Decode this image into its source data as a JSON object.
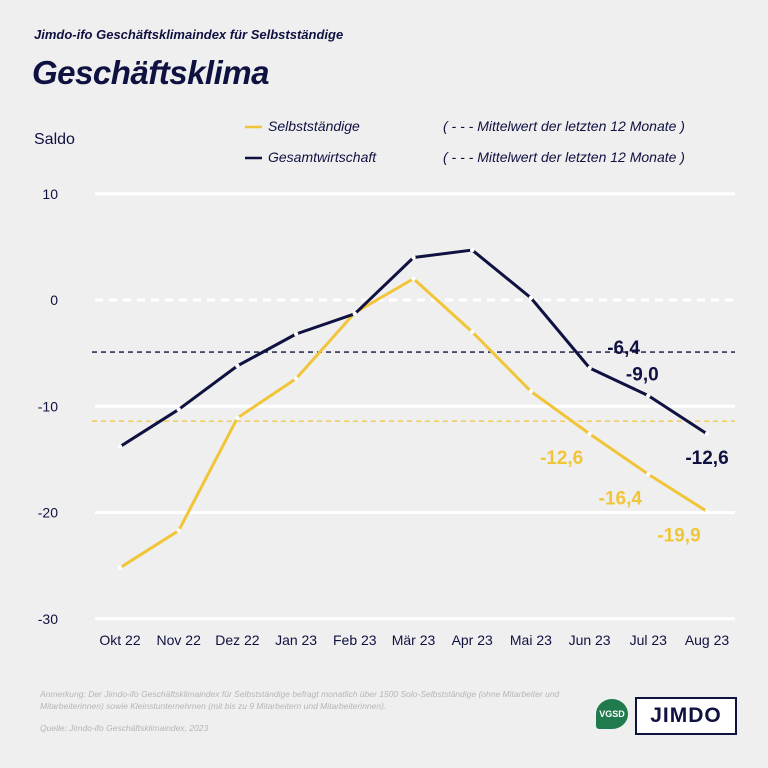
{
  "header": {
    "supertitle": "Jimdo-ifo Geschäftsklimaindex für Selbstständige",
    "title": "Geschäftsklima"
  },
  "legend": {
    "s1": "Selbstständige",
    "s2": "Gesamtwirtschaft",
    "m1": "( - - - Mittelwert der letzten 12 Monate )",
    "m2": "( - - - Mittelwert der letzten 12 Monate )"
  },
  "footer": {
    "note1": "Anmerkung: Der Jimdo-ifo Geschäftsklimaindex für Selbstständige befragt monatlich über 1500 Solo-Selbstständige (ohne Mitarbeiter",
    "note2": "und Mitarbeiterinnen) sowie Kleinstunternehmen (mit bis zu 9 Mitarbeitern und Mitarbeiterinnen).",
    "source": "Quelle: Jimdo-ifo Geschäftsklimaindex, 2023",
    "logo1": "VGSD",
    "logo2": "JIMDO"
  },
  "chart_data": {
    "type": "line",
    "ylabel": "Saldo",
    "ylim": [
      -30,
      10
    ],
    "yticks": [
      10,
      0,
      -10,
      -20,
      -30
    ],
    "categories": [
      "Okt 22",
      "Nov 22",
      "Dez 22",
      "Jan 23",
      "Feb 23",
      "Mär 23",
      "Apr 23",
      "Mai 23",
      "Jun 23",
      "Jul 23",
      "Aug 23"
    ],
    "series": [
      {
        "name": "Selbstständige",
        "color": "#f0c53a",
        "values": [
          -25.2,
          -21.7,
          -11.1,
          -7.4,
          -1.2,
          2.0,
          -3.0,
          -8.6,
          -12.6,
          -16.4,
          -19.9
        ],
        "mean": -11.4,
        "labels": [
          "-12,6",
          "-16,4",
          "-19,9"
        ]
      },
      {
        "name": "Gesamtwirtschaft",
        "color": "#0f1140",
        "values": [
          -13.8,
          -10.3,
          -6.2,
          -3.2,
          -1.3,
          4.0,
          4.7,
          0.2,
          -6.4,
          -9.0,
          -12.6
        ],
        "mean": -4.9,
        "labels": [
          "-6,4",
          "-9,0",
          "-12,6"
        ]
      }
    ]
  }
}
